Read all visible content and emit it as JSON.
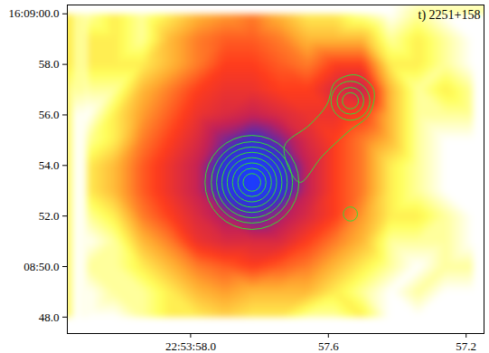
{
  "chart_data": {
    "type": "heatmap",
    "title": "t) 2251+158",
    "xlim": [
      58.358,
      57.148
    ],
    "ylim": [
      47.35,
      60.35
    ],
    "xticks": [
      {
        "value": 58.0,
        "label": "22:53:58.0"
      },
      57.6,
      57.2
    ],
    "yticks": [
      {
        "value": 60,
        "label": "16:09:00.0"
      },
      {
        "value": 58,
        "label": "58.0"
      },
      {
        "value": 56,
        "label": "56.0"
      },
      {
        "value": 54,
        "label": "54.0"
      },
      {
        "value": 52,
        "label": "52.0"
      },
      {
        "value": 50,
        "label": "08:50.0"
      },
      {
        "value": 48,
        "label": "48.0"
      }
    ],
    "cells": {
      "ra": [
        58.3,
        58.22,
        58.14,
        58.06,
        57.98,
        57.9,
        57.82,
        57.74,
        57.66,
        57.58,
        57.5,
        57.42,
        57.34,
        57.26,
        57.18
      ],
      "dec": [
        60,
        59,
        58,
        57,
        56,
        55,
        54,
        53,
        52,
        51,
        50,
        49,
        48
      ],
      "values": [
        [
          1,
          2,
          1,
          2,
          3,
          3.5,
          4,
          3,
          2,
          2,
          1,
          0,
          1,
          0,
          0
        ],
        [
          2,
          2,
          1,
          3,
          4,
          4.5,
          4.5,
          4,
          3,
          3,
          3,
          1,
          2,
          1,
          0
        ],
        [
          2,
          2,
          2,
          3,
          4,
          5,
          5,
          4.5,
          4,
          5,
          5,
          2,
          2,
          1,
          0
        ],
        [
          1,
          1,
          3,
          4,
          5,
          5.5,
          5.5,
          5,
          5,
          6,
          6.5,
          3,
          1,
          2,
          1
        ],
        [
          0,
          2,
          3.5,
          4.5,
          5.5,
          6,
          6.5,
          6,
          5.5,
          5.5,
          5,
          3,
          1,
          1,
          1
        ],
        [
          1,
          2,
          4,
          5,
          6,
          7.5,
          8.5,
          7.5,
          6,
          5,
          4,
          3,
          1,
          0,
          0
        ],
        [
          2,
          3,
          4.5,
          5.5,
          6.5,
          9,
          10,
          9,
          6.5,
          5,
          4,
          2,
          1,
          0,
          0
        ],
        [
          2,
          3,
          4.5,
          5.5,
          6.5,
          9,
          10,
          9,
          6.5,
          5,
          4,
          2,
          1,
          0,
          0
        ],
        [
          1,
          2,
          4,
          5,
          6,
          7,
          8,
          7,
          6,
          5,
          3.5,
          2,
          2,
          1,
          0
        ],
        [
          0,
          1,
          3,
          4,
          5.5,
          6,
          6,
          6,
          5,
          4,
          3,
          1,
          1,
          1,
          0
        ],
        [
          1,
          1,
          2,
          3,
          4,
          4.5,
          5,
          4.5,
          4,
          3,
          2,
          1,
          0,
          1,
          1
        ],
        [
          0,
          1,
          1,
          2,
          3,
          3.5,
          3,
          3,
          3,
          2,
          1,
          0,
          1,
          0,
          0
        ],
        [
          0,
          0,
          1,
          2,
          2,
          2.5,
          2,
          2,
          1,
          1,
          2,
          0,
          0,
          0,
          0
        ]
      ]
    },
    "contours": {
      "color": "#33dd33",
      "circles": [
        {
          "ra": 57.822,
          "dec": 53.33,
          "radii": [
            1.86,
            1.61,
            1.4,
            1.19,
            0.98,
            0.77,
            0.56,
            0.35
          ]
        },
        {
          "ra": 57.536,
          "dec": 56.56,
          "radii": [
            0.77,
            0.53,
            0.32
          ]
        },
        {
          "ra": 57.536,
          "dec": 52.08,
          "radii": [
            0.28
          ]
        }
      ],
      "paths": [
        [
          [
            57.728,
            54.74
          ],
          [
            57.654,
            55.61
          ],
          [
            57.605,
            56.39
          ],
          [
            57.58,
            57.3
          ],
          [
            57.519,
            57.58
          ],
          [
            57.469,
            57.02
          ],
          [
            57.481,
            56.03
          ],
          [
            57.543,
            55.33
          ],
          [
            57.617,
            54.38
          ],
          [
            57.684,
            53.33
          ]
        ]
      ]
    }
  }
}
